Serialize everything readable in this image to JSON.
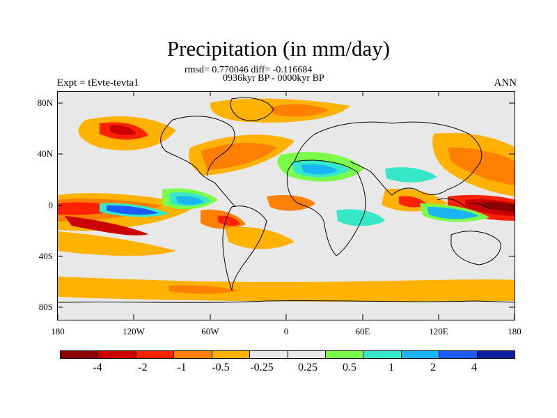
{
  "title": "Precipitation (in mm/day)",
  "stats_line": "rmsd= 0.770046 diff= -0.116684",
  "period_line": "0936kyr BP - 0000kyr BP",
  "experiment": "Expt = tEvte-tevta1",
  "season": "ANN",
  "lat_labels": [
    "80N",
    "40N",
    "0",
    "40S",
    "80S"
  ],
  "lon_labels": [
    "180",
    "120W",
    "60W",
    "0",
    "60E",
    "120E",
    "180"
  ],
  "colorbar": {
    "colors": [
      "#8b0000",
      "#cc0000",
      "#ff2200",
      "#ff7f00",
      "#ffb300",
      "#e8e8e8",
      "#e8e8e8",
      "#7cfc4a",
      "#36e8c8",
      "#19b5f5",
      "#1a5cff",
      "#0a1f9e"
    ],
    "labels": [
      "-4",
      "-2",
      "-1",
      "-0.5",
      "-0.25",
      "0.25",
      "0.5",
      "1",
      "2",
      "4"
    ]
  },
  "map_colors": {
    "background": "#e8e8e8",
    "coast": "#000000"
  }
}
